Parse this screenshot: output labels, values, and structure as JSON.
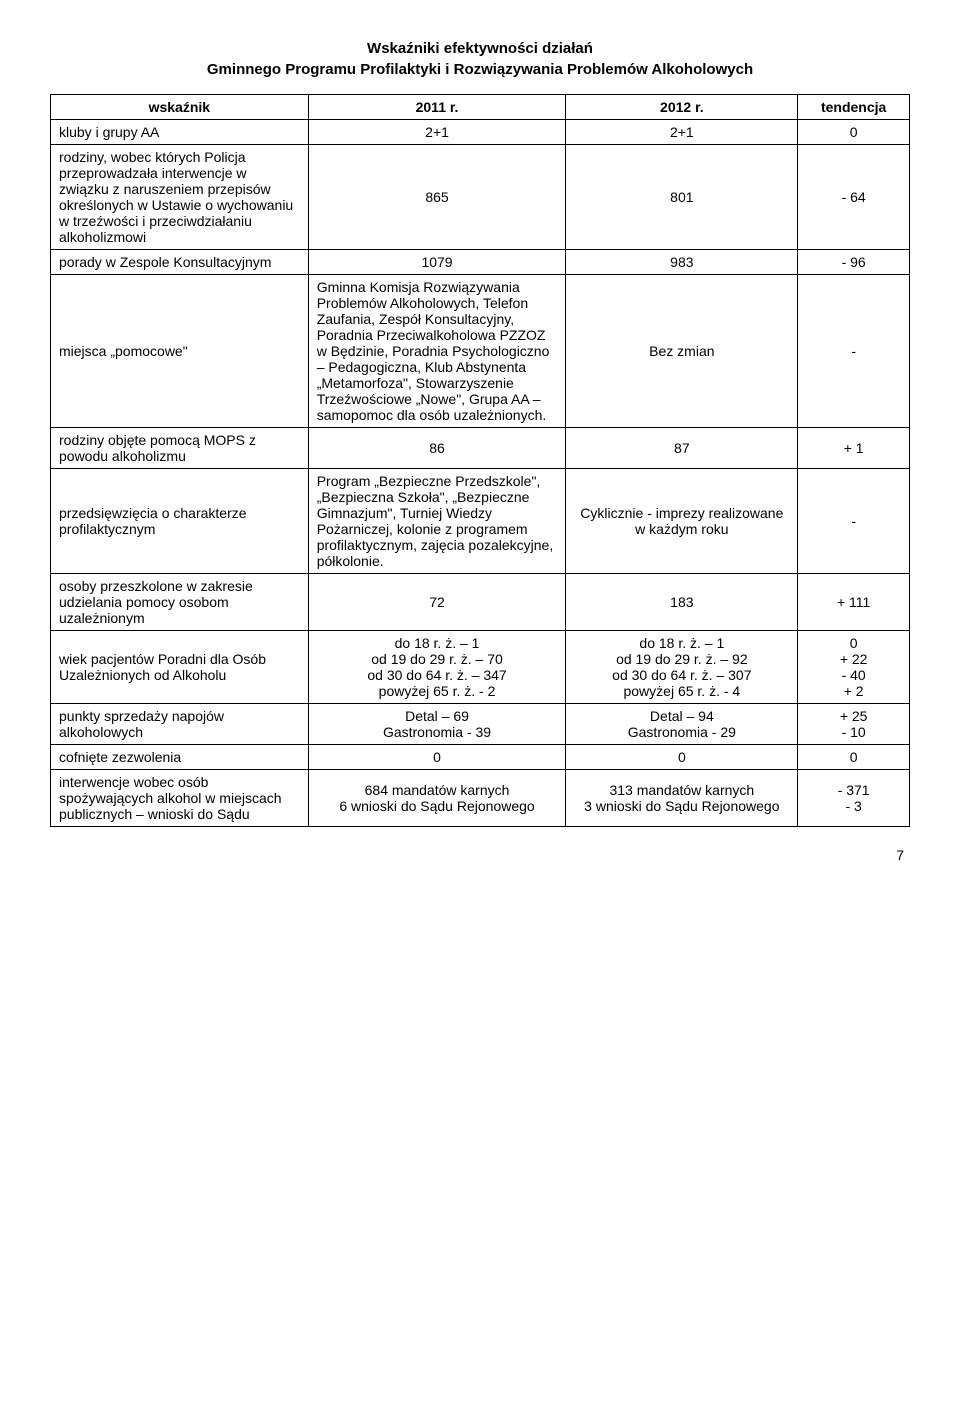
{
  "title_line1": "Wskaźniki efektywności działań",
  "title_line2": "Gminnego Programu Profilaktyki i Rozwiązywania Problemów Alkoholowych",
  "headers": {
    "c0": "wskaźnik",
    "c1": "2011 r.",
    "c2": "2012 r.",
    "c3": "tendencja"
  },
  "rows": [
    {
      "c0": "kluby i grupy AA",
      "c1": "2+1",
      "c2": "2+1",
      "c3": "0"
    },
    {
      "c0": "rodziny, wobec których Policja przeprowadzała interwencje w związku z naruszeniem przepisów określonych w Ustawie o wychowaniu w trzeźwości i przeciwdziałaniu alkoholizmowi",
      "c1": "865",
      "c2": "801",
      "c3": "- 64"
    },
    {
      "c0": "porady w Zespole Konsultacyjnym",
      "c1": "1079",
      "c2": "983",
      "c3": "- 96"
    },
    {
      "c0": "miejsca „pomocowe\"",
      "c1": "Gminna Komisja Rozwiązywania Problemów Alkoholowych, Telefon Zaufania, Zespół Konsultacyjny, Poradnia Przeciwalkoholowa PZZOZ w Będzinie, Poradnia Psychologiczno – Pedagogiczna, Klub Abstynenta „Metamorfoza\", Stowarzyszenie Trzeźwościowe „Nowe\", Grupa AA – samopomoc dla osób uzależnionych.",
      "c2": "Bez zmian",
      "c3": "-",
      "c1_left": true
    },
    {
      "c0": "rodziny objęte pomocą MOPS z powodu alkoholizmu",
      "c1": "86",
      "c2": "87",
      "c3": "+ 1"
    },
    {
      "c0": "przedsięwzięcia o charakterze profilaktycznym",
      "c1": "Program „Bezpieczne Przedszkole\", „Bezpieczna Szkoła\", „Bezpieczne Gimnazjum\", Turniej Wiedzy Pożarniczej, kolonie z programem profilaktycznym, zajęcia pozalekcyjne, półkolonie.",
      "c2": "Cyklicznie - imprezy realizowane w każdym roku",
      "c3": "-",
      "c1_left": true
    },
    {
      "c0": "osoby przeszkolone w zakresie udzielania pomocy osobom uzależnionym",
      "c1": "72",
      "c2": "183",
      "c3": "+ 111"
    },
    {
      "c0": "wiek pacjentów Poradni dla Osób Uzależnionych od Alkoholu",
      "c1": "do 18 r. ż. – 1\nod 19 do 29 r. ż. – 70\nod 30 do 64 r. ż. – 347\npowyżej 65 r. ż. - 2",
      "c2": "do 18 r. ż. – 1\nod 19 do 29 r. ż. – 92\nod 30 do 64 r. ż. – 307\npowyżej 65 r. ż. - 4",
      "c3": "0\n+ 22\n- 40\n+ 2"
    },
    {
      "c0": "punkty sprzedaży napojów alkoholowych",
      "c1": "Detal – 69\nGastronomia - 39",
      "c2": "Detal – 94\nGastronomia - 29",
      "c3": "+ 25\n- 10"
    },
    {
      "c0": "cofnięte zezwolenia",
      "c1": "0",
      "c2": "0",
      "c3": "0"
    },
    {
      "c0": "interwencje wobec osób spożywających alkohol w miejscach publicznych – wnioski do Sądu",
      "c1": "684 mandatów karnych\n6 wnioski do Sądu Rejonowego",
      "c2": "313 mandatów karnych\n3 wnioski do Sądu Rejonowego",
      "c3": "- 371\n- 3"
    }
  ],
  "page_number": "7"
}
